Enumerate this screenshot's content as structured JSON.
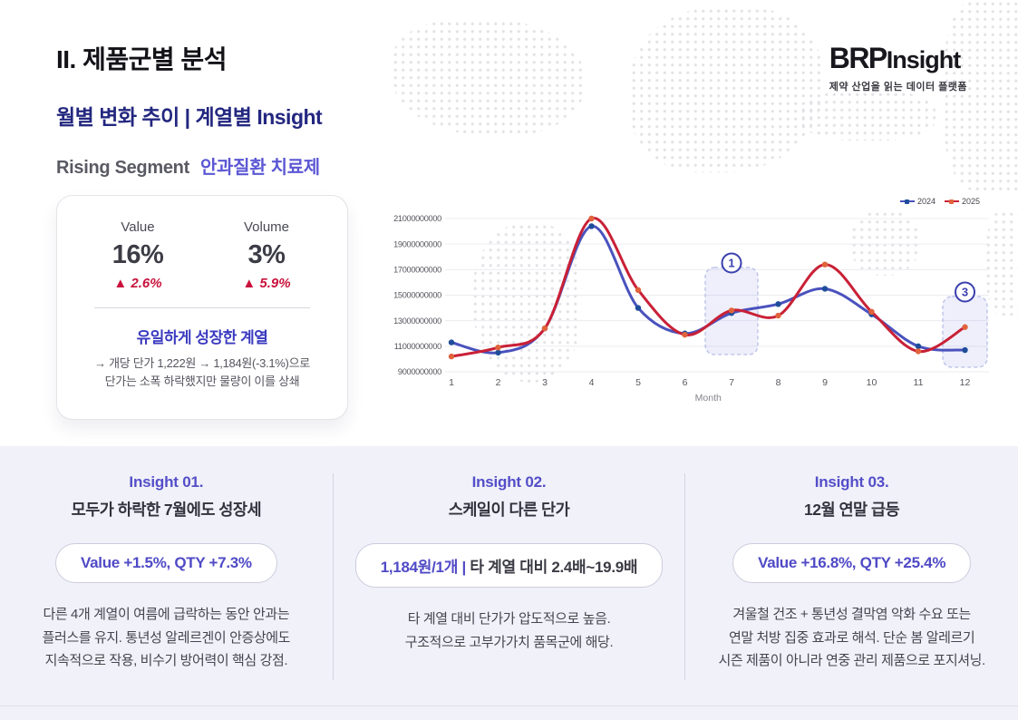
{
  "header": {
    "section_title": "II. 제품군별 분석",
    "subtitle": "월별 변화 추이 | 계열별 Insight",
    "segment_label": "Rising Segment",
    "segment_value": "안과질환 치료제"
  },
  "logo": {
    "brand_bold": "BRP",
    "brand_light": "Insight",
    "tagline": "제약 산업을 읽는 데이터 플랫폼"
  },
  "summary_card": {
    "value_label": "Value",
    "value_pct": "16%",
    "value_delta": "▲ 2.6%",
    "volume_label": "Volume",
    "volume_pct": "3%",
    "volume_delta": "▲ 5.9%",
    "headline": "유일하게 성장한 계열",
    "description_line1": "→ 개당 단가 1,222원 → 1,184원(-3.1%)으로",
    "description_line2": "단가는 소폭 하락했지만 물량이 이를 상쇄"
  },
  "chart_data": {
    "type": "line",
    "title": "",
    "xlabel": "Month",
    "x": [
      1,
      2,
      3,
      4,
      5,
      6,
      7,
      8,
      9,
      10,
      11,
      12
    ],
    "ylim": [
      9000000000,
      21000000000
    ],
    "yticks": [
      21000000000,
      19000000000,
      17000000000,
      15000000000,
      13000000000,
      11000000000,
      9000000000
    ],
    "grid": true,
    "legend_position": "top-right",
    "series": [
      {
        "name": "2024",
        "line_color": "#4a52bd",
        "marker_color": "#1f4d9b",
        "values": [
          11300000000,
          10500000000,
          12400000000,
          20400000000,
          14000000000,
          12000000000,
          13600000000,
          14300000000,
          15500000000,
          13500000000,
          11000000000,
          10700000000
        ]
      },
      {
        "name": "2025",
        "line_color": "#c92036",
        "marker_color": "#e0633c",
        "values": [
          10200000000,
          10900000000,
          12400000000,
          21000000000,
          15400000000,
          11900000000,
          13800000000,
          13400000000,
          17400000000,
          13700000000,
          10600000000,
          12500000000
        ]
      }
    ],
    "annotations": [
      {
        "label": "1",
        "month": 7
      },
      {
        "label": "3",
        "month": 12
      }
    ]
  },
  "insights": [
    {
      "title": "Insight 01.",
      "subtitle": "모두가 하락한 7월에도 성장세",
      "pill": {
        "highlight": "Value +1.5%, QTY +7.3%",
        "rest": ""
      },
      "body": [
        "다른 4개 계열이 여름에 급락하는 동안 안과는",
        "플러스를 유지. 통년성 알레르겐이 안증상에도",
        "지속적으로 작용, 비수기 방어력이 핵심 강점."
      ]
    },
    {
      "title": "Insight 02.",
      "subtitle": "스케일이 다른 단가",
      "pill": {
        "highlight": "1,184원/1개 |",
        "rest": "타 계열 대비 2.4배~19.9배"
      },
      "body": [
        "타 계열 대비 단가가 압도적으로 높음.",
        "구조적으로 고부가가치 품목군에 해당."
      ]
    },
    {
      "title": "Insight 03.",
      "subtitle": "12월 연말 급등",
      "pill": {
        "highlight": "Value +16.8%, QTY +25.4%",
        "rest": ""
      },
      "body": [
        "겨울철 건조 + 통년성 결막염 악화 수요 또는",
        "연말 처방 집중 효과로 해석. 단순 봄 알레르기",
        "시즌 제품이 아니라 연중 관리 제품으로 포지셔닝."
      ]
    }
  ]
}
